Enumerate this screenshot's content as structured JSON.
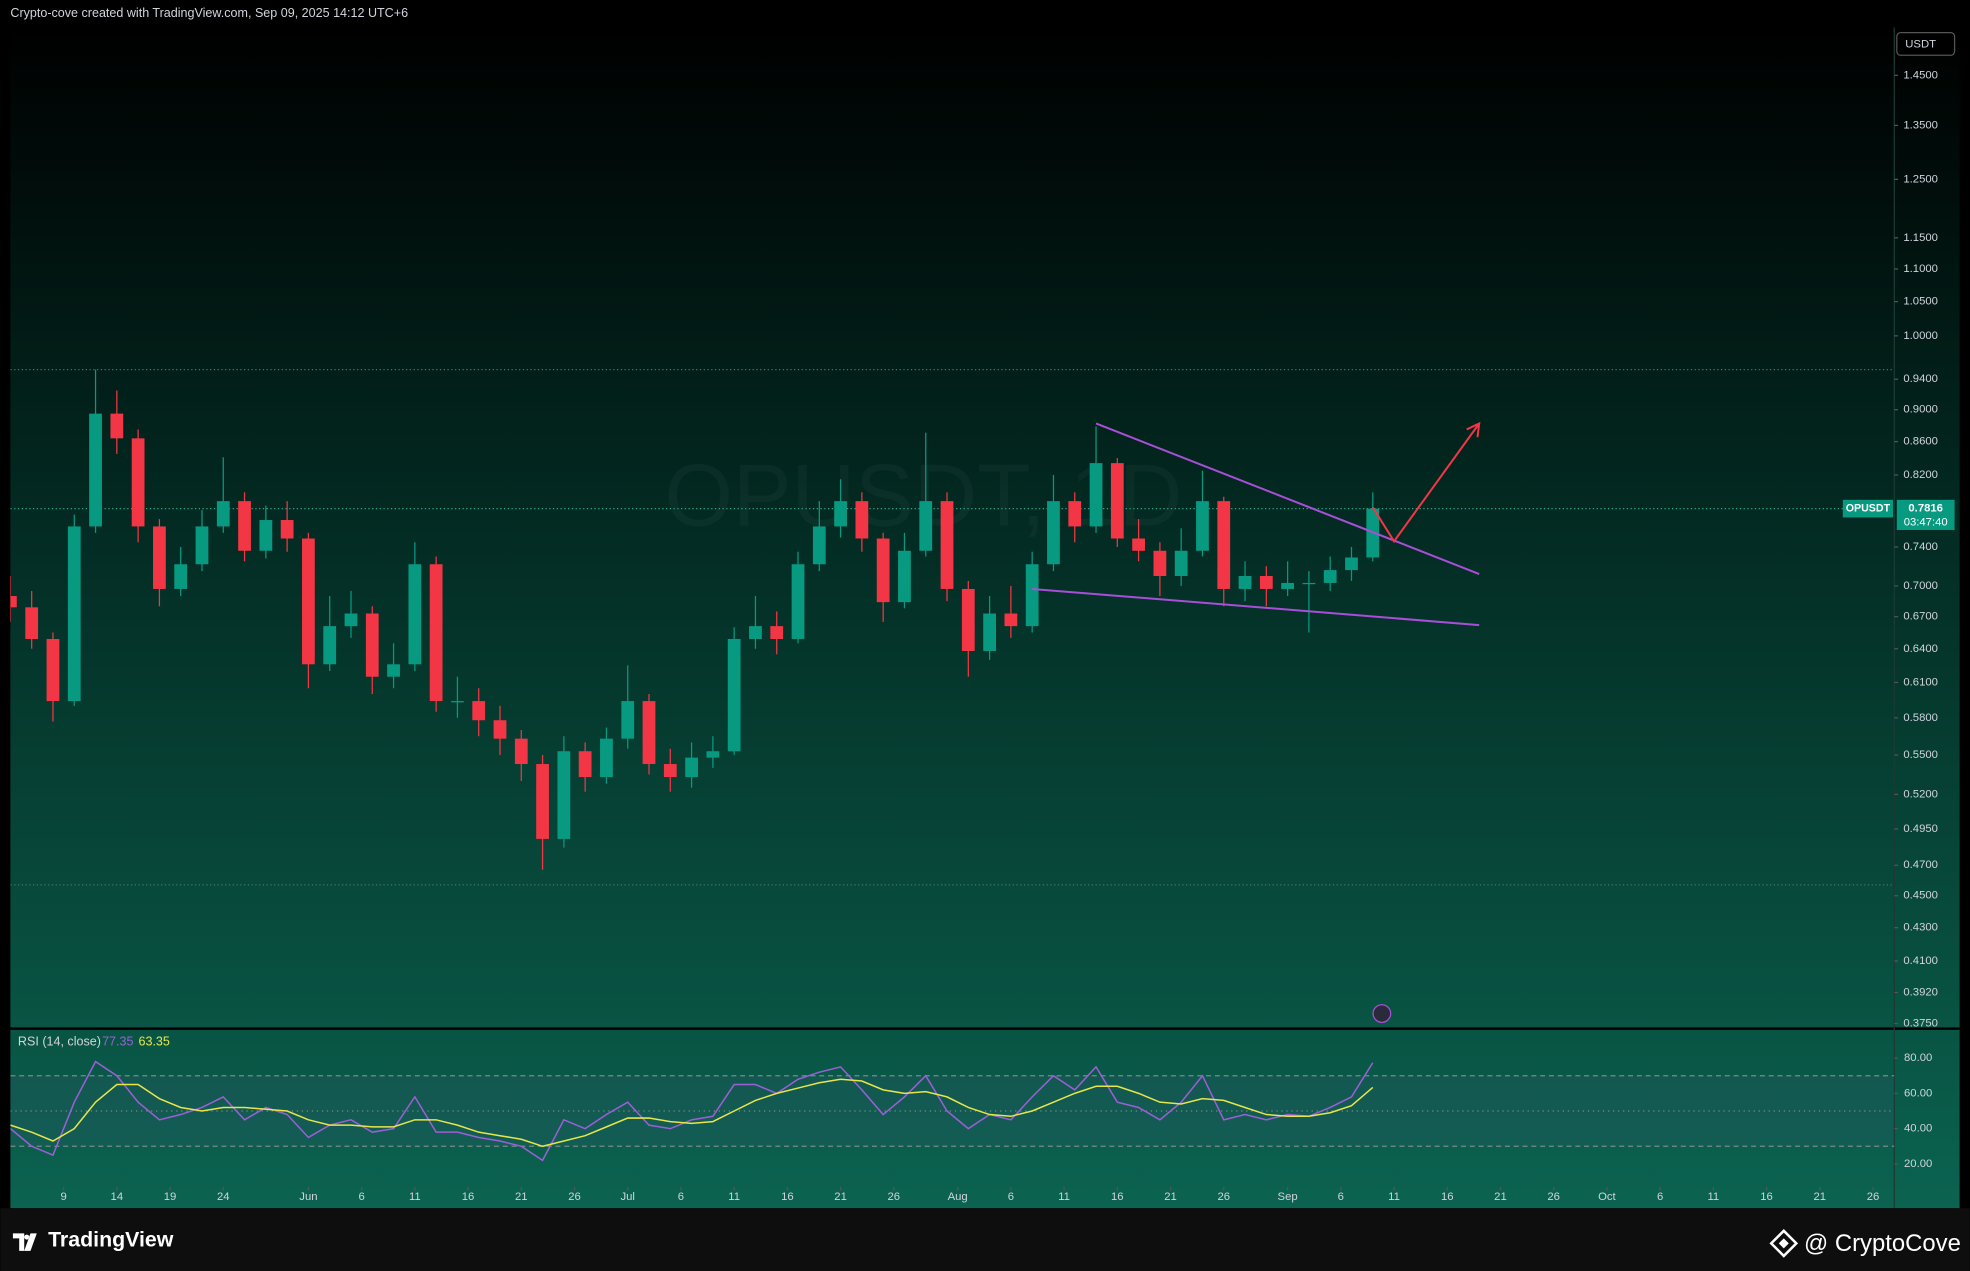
{
  "header": "Crypto-cove created with TradingView.com, Sep 09, 2025 14:12 UTC+6",
  "footer": {
    "brand": "TradingView",
    "credit": "@ CryptoCove"
  },
  "chart_data": [
    {
      "type": "candlestick",
      "watermark": "OPUSDT, 1D",
      "ticker": "OPUSDT",
      "axis_unit": "USDT",
      "countdown": "03:47:40",
      "log_scale": true,
      "up_color": "#089981",
      "down_color": "#f23645",
      "x": [
        "2025-05-04",
        "2025-05-06",
        "2025-05-08",
        "2025-05-10",
        "2025-05-12",
        "2025-05-14",
        "2025-05-16",
        "2025-05-18",
        "2025-05-20",
        "2025-05-22",
        "2025-05-24",
        "2025-05-26",
        "2025-05-28",
        "2025-05-30",
        "2025-06-01",
        "2025-06-03",
        "2025-06-05",
        "2025-06-07",
        "2025-06-09",
        "2025-06-11",
        "2025-06-13",
        "2025-06-15",
        "2025-06-17",
        "2025-06-19",
        "2025-06-21",
        "2025-06-23",
        "2025-06-25",
        "2025-06-27",
        "2025-06-29",
        "2025-07-01",
        "2025-07-03",
        "2025-07-05",
        "2025-07-07",
        "2025-07-09",
        "2025-07-11",
        "2025-07-13",
        "2025-07-15",
        "2025-07-17",
        "2025-07-19",
        "2025-07-21",
        "2025-07-23",
        "2025-07-25",
        "2025-07-27",
        "2025-07-29",
        "2025-07-31",
        "2025-08-02",
        "2025-08-04",
        "2025-08-06",
        "2025-08-08",
        "2025-08-10",
        "2025-08-12",
        "2025-08-14",
        "2025-08-16",
        "2025-08-18",
        "2025-08-20",
        "2025-08-22",
        "2025-08-24",
        "2025-08-26",
        "2025-08-28",
        "2025-08-30",
        "2025-09-01",
        "2025-09-03",
        "2025-09-05",
        "2025-09-07",
        "2025-09-09"
      ],
      "open": [
        0.69,
        0.679,
        0.649,
        0.594,
        0.762,
        0.895,
        0.864,
        0.762,
        0.697,
        0.722,
        0.762,
        0.79,
        0.736,
        0.769,
        0.749,
        0.626,
        0.661,
        0.673,
        0.615,
        0.626,
        0.722,
        0.594,
        0.594,
        0.578,
        0.563,
        0.543,
        0.488,
        0.553,
        0.533,
        0.563,
        0.594,
        0.543,
        0.533,
        0.548,
        0.553,
        0.649,
        0.661,
        0.649,
        0.722,
        0.762,
        0.79,
        0.749,
        0.684,
        0.736,
        0.79,
        0.697,
        0.638,
        0.673,
        0.661,
        0.722,
        0.79,
        0.762,
        0.834,
        0.749,
        0.736,
        0.71,
        0.736,
        0.79,
        0.697,
        0.71,
        0.697,
        0.703,
        0.703,
        0.716,
        0.729
      ],
      "high": [
        0.71,
        0.695,
        0.655,
        0.775,
        0.953,
        0.925,
        0.875,
        0.77,
        0.74,
        0.78,
        0.841,
        0.8,
        0.785,
        0.79,
        0.755,
        0.69,
        0.695,
        0.68,
        0.645,
        0.745,
        0.73,
        0.615,
        0.605,
        0.59,
        0.57,
        0.55,
        0.565,
        0.56,
        0.572,
        0.625,
        0.6,
        0.555,
        0.56,
        0.565,
        0.66,
        0.69,
        0.675,
        0.735,
        0.79,
        0.815,
        0.8,
        0.755,
        0.755,
        0.871,
        0.8,
        0.705,
        0.69,
        0.7,
        0.735,
        0.82,
        0.8,
        0.879,
        0.84,
        0.77,
        0.745,
        0.76,
        0.825,
        0.795,
        0.725,
        0.72,
        0.725,
        0.715,
        0.73,
        0.74,
        0.8
      ],
      "low": [
        0.665,
        0.64,
        0.577,
        0.59,
        0.755,
        0.845,
        0.745,
        0.68,
        0.69,
        0.715,
        0.755,
        0.725,
        0.728,
        0.735,
        0.605,
        0.62,
        0.65,
        0.6,
        0.605,
        0.62,
        0.585,
        0.58,
        0.565,
        0.55,
        0.53,
        0.467,
        0.482,
        0.522,
        0.528,
        0.555,
        0.535,
        0.522,
        0.525,
        0.54,
        0.55,
        0.64,
        0.635,
        0.645,
        0.715,
        0.75,
        0.735,
        0.665,
        0.678,
        0.73,
        0.685,
        0.615,
        0.63,
        0.65,
        0.655,
        0.715,
        0.745,
        0.755,
        0.74,
        0.725,
        0.69,
        0.7,
        0.73,
        0.68,
        0.685,
        0.68,
        0.69,
        0.655,
        0.695,
        0.705,
        0.725
      ],
      "close": [
        0.679,
        0.649,
        0.594,
        0.762,
        0.895,
        0.864,
        0.762,
        0.697,
        0.722,
        0.762,
        0.79,
        0.736,
        0.769,
        0.749,
        0.626,
        0.661,
        0.673,
        0.615,
        0.626,
        0.722,
        0.594,
        0.594,
        0.578,
        0.563,
        0.543,
        0.488,
        0.553,
        0.533,
        0.563,
        0.594,
        0.543,
        0.533,
        0.548,
        0.553,
        0.649,
        0.661,
        0.649,
        0.722,
        0.762,
        0.79,
        0.749,
        0.684,
        0.736,
        0.79,
        0.697,
        0.638,
        0.673,
        0.661,
        0.722,
        0.79,
        0.762,
        0.834,
        0.749,
        0.736,
        0.71,
        0.736,
        0.79,
        0.697,
        0.71,
        0.697,
        0.703,
        0.703,
        0.716,
        0.729,
        0.7816
      ],
      "last_price": {
        "value": 0.7816,
        "label": "0.7816"
      },
      "levels": [
        0.953,
        0.457
      ],
      "xlim": [
        "2025-05-04",
        "2025-10-28"
      ],
      "xticks": [
        {
          "value": "2025-05-09",
          "label": "9"
        },
        {
          "value": "2025-05-14",
          "label": "14"
        },
        {
          "value": "2025-05-19",
          "label": "19"
        },
        {
          "value": "2025-05-24",
          "label": "24"
        },
        {
          "value": "2025-06-01",
          "label": "Jun"
        },
        {
          "value": "2025-06-06",
          "label": "6"
        },
        {
          "value": "2025-06-11",
          "label": "11"
        },
        {
          "value": "2025-06-16",
          "label": "16"
        },
        {
          "value": "2025-06-21",
          "label": "21"
        },
        {
          "value": "2025-06-26",
          "label": "26"
        },
        {
          "value": "2025-07-01",
          "label": "Jul"
        },
        {
          "value": "2025-07-06",
          "label": "6"
        },
        {
          "value": "2025-07-11",
          "label": "11"
        },
        {
          "value": "2025-07-16",
          "label": "16"
        },
        {
          "value": "2025-07-21",
          "label": "21"
        },
        {
          "value": "2025-07-26",
          "label": "26"
        },
        {
          "value": "2025-08-01",
          "label": "Aug"
        },
        {
          "value": "2025-08-06",
          "label": "6"
        },
        {
          "value": "2025-08-11",
          "label": "11"
        },
        {
          "value": "2025-08-16",
          "label": "16"
        },
        {
          "value": "2025-08-21",
          "label": "21"
        },
        {
          "value": "2025-08-26",
          "label": "26"
        },
        {
          "value": "2025-09-01",
          "label": "Sep"
        },
        {
          "value": "2025-09-06",
          "label": "6"
        },
        {
          "value": "2025-09-11",
          "label": "11"
        },
        {
          "value": "2025-09-16",
          "label": "16"
        },
        {
          "value": "2025-09-21",
          "label": "21"
        },
        {
          "value": "2025-09-26",
          "label": "26"
        },
        {
          "value": "2025-10-01",
          "label": "Oct"
        },
        {
          "value": "2025-10-06",
          "label": "6"
        },
        {
          "value": "2025-10-11",
          "label": "11"
        },
        {
          "value": "2025-10-16",
          "label": "16"
        },
        {
          "value": "2025-10-21",
          "label": "21"
        },
        {
          "value": "2025-10-26",
          "label": "26"
        }
      ],
      "ylim": [
        0.373,
        1.552
      ],
      "yticks": [
        {
          "value": 1.45,
          "label": "1.4500"
        },
        {
          "value": 1.35,
          "label": "1.3500"
        },
        {
          "value": 1.25,
          "label": "1.2500"
        },
        {
          "value": 1.15,
          "label": "1.1500"
        },
        {
          "value": 1.1,
          "label": "1.1000"
        },
        {
          "value": 1.05,
          "label": "1.0500"
        },
        {
          "value": 1,
          "label": "1.0000"
        },
        {
          "value": 0.94,
          "label": "0.9400"
        },
        {
          "value": 0.9,
          "label": "0.9000"
        },
        {
          "value": 0.86,
          "label": "0.8600"
        },
        {
          "value": 0.82,
          "label": "0.8200"
        },
        {
          "value": 0.74,
          "label": "0.7400"
        },
        {
          "value": 0.7,
          "label": "0.7000"
        },
        {
          "value": 0.67,
          "label": "0.6700"
        },
        {
          "value": 0.64,
          "label": "0.6400"
        },
        {
          "value": 0.61,
          "label": "0.6100"
        },
        {
          "value": 0.58,
          "label": "0.5800"
        },
        {
          "value": 0.55,
          "label": "0.5500"
        },
        {
          "value": 0.52,
          "label": "0.5200"
        },
        {
          "value": 0.495,
          "label": "0.4950"
        },
        {
          "value": 0.47,
          "label": "0.4700"
        },
        {
          "value": 0.45,
          "label": "0.4500"
        },
        {
          "value": 0.43,
          "label": "0.4300"
        },
        {
          "value": 0.41,
          "label": "0.4100"
        },
        {
          "value": 0.392,
          "label": "0.3920"
        },
        {
          "value": 0.375,
          "label": "0.3750"
        }
      ],
      "trendlines": [
        {
          "x": [
            "2025-08-14",
            "2025-09-19"
          ],
          "y": [
            0.8825,
            0.712
          ],
          "color": "#a94ed8"
        },
        {
          "x": [
            "2025-08-08",
            "2025-09-19"
          ],
          "y": [
            0.697,
            0.662
          ],
          "color": "#a94ed8"
        }
      ],
      "arrow": {
        "x": [
          "2025-09-09",
          "2025-09-11",
          "2025-09-19"
        ],
        "y": [
          0.783,
          0.746,
          0.8825
        ],
        "color": "#f23645"
      }
    },
    {
      "type": "line",
      "title": "RSI (14, close)",
      "x": [
        "2025-05-04",
        "2025-05-06",
        "2025-05-08",
        "2025-05-10",
        "2025-05-12",
        "2025-05-14",
        "2025-05-16",
        "2025-05-18",
        "2025-05-20",
        "2025-05-22",
        "2025-05-24",
        "2025-05-26",
        "2025-05-28",
        "2025-05-30",
        "2025-06-01",
        "2025-06-03",
        "2025-06-05",
        "2025-06-07",
        "2025-06-09",
        "2025-06-11",
        "2025-06-13",
        "2025-06-15",
        "2025-06-17",
        "2025-06-19",
        "2025-06-21",
        "2025-06-23",
        "2025-06-25",
        "2025-06-27",
        "2025-06-29",
        "2025-07-01",
        "2025-07-03",
        "2025-07-05",
        "2025-07-07",
        "2025-07-09",
        "2025-07-11",
        "2025-07-13",
        "2025-07-15",
        "2025-07-17",
        "2025-07-19",
        "2025-07-21",
        "2025-07-23",
        "2025-07-25",
        "2025-07-27",
        "2025-07-29",
        "2025-07-31",
        "2025-08-02",
        "2025-08-04",
        "2025-08-06",
        "2025-08-08",
        "2025-08-10",
        "2025-08-12",
        "2025-08-14",
        "2025-08-16",
        "2025-08-18",
        "2025-08-20",
        "2025-08-22",
        "2025-08-24",
        "2025-08-26",
        "2025-08-28",
        "2025-08-30",
        "2025-09-01",
        "2025-09-03",
        "2025-09-05",
        "2025-09-07",
        "2025-09-09"
      ],
      "xlim": [
        "2025-05-04",
        "2025-10-28"
      ],
      "ylim": [
        7,
        96
      ],
      "yticks": [
        {
          "value": 80,
          "label": "80.00"
        },
        {
          "value": 60,
          "label": "60.00"
        },
        {
          "value": 40,
          "label": "40.00"
        },
        {
          "value": 20,
          "label": "20.00"
        }
      ],
      "bands": [
        30,
        50,
        70
      ],
      "series": [
        {
          "color": "#9c5fd6",
          "values": [
            40,
            30,
            25,
            55,
            78,
            70,
            55,
            45,
            48,
            52,
            58,
            45,
            52,
            48,
            35,
            42,
            45,
            38,
            40,
            58,
            38,
            38,
            35,
            33,
            30,
            22,
            45,
            40,
            48,
            55,
            42,
            40,
            45,
            47,
            65,
            65,
            60,
            68,
            72,
            75,
            62,
            48,
            58,
            70,
            50,
            40,
            48,
            45,
            58,
            70,
            62,
            75,
            55,
            52,
            45,
            55,
            70,
            45,
            48,
            45,
            48,
            47,
            52,
            58,
            77.35
          ]
        },
        {
          "color": "#e6e64a",
          "values": [
            42,
            38,
            33,
            40,
            55,
            65,
            65,
            57,
            52,
            50,
            52,
            52,
            51,
            50,
            45,
            42,
            42,
            41,
            41,
            45,
            45,
            42,
            38,
            36,
            34,
            30,
            33,
            36,
            41,
            46,
            46,
            44,
            43,
            44,
            50,
            56,
            60,
            63,
            66,
            68,
            67,
            62,
            60,
            61,
            58,
            52,
            48,
            47,
            50,
            55,
            60,
            64,
            64,
            60,
            55,
            54,
            57,
            56,
            52,
            48,
            47,
            47,
            49,
            53,
            63.35
          ]
        }
      ]
    }
  ]
}
